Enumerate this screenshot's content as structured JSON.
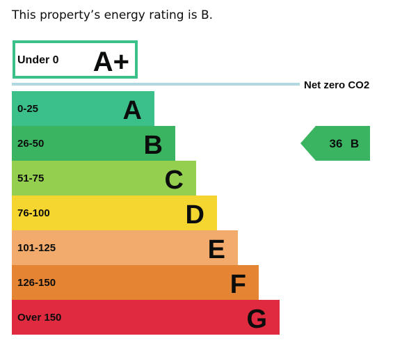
{
  "intro_text": "This property’s energy rating is B.",
  "chart_data": {
    "type": "bar",
    "bands": [
      {
        "range": "Under 0",
        "letter": "A+",
        "color": "#3cc08a",
        "outlined": true
      },
      {
        "range": "0-25",
        "letter": "A",
        "color": "#3cc08a"
      },
      {
        "range": "26-50",
        "letter": "B",
        "color": "#3bb462"
      },
      {
        "range": "51-75",
        "letter": "C",
        "color": "#95cf4f"
      },
      {
        "range": "76-100",
        "letter": "D",
        "color": "#f5d52f"
      },
      {
        "range": "101-125",
        "letter": "E",
        "color": "#f3ab6d"
      },
      {
        "range": "126-150",
        "letter": "F",
        "color": "#e58433"
      },
      {
        "range": "Over 150",
        "letter": "G",
        "color": "#df2a3f"
      }
    ],
    "net_zero_label": "Net zero CO2",
    "net_zero_line_color": "#b1d7e0",
    "current_rating": {
      "score": "36",
      "letter": "B",
      "value": 36,
      "color": "#3bb462"
    }
  }
}
